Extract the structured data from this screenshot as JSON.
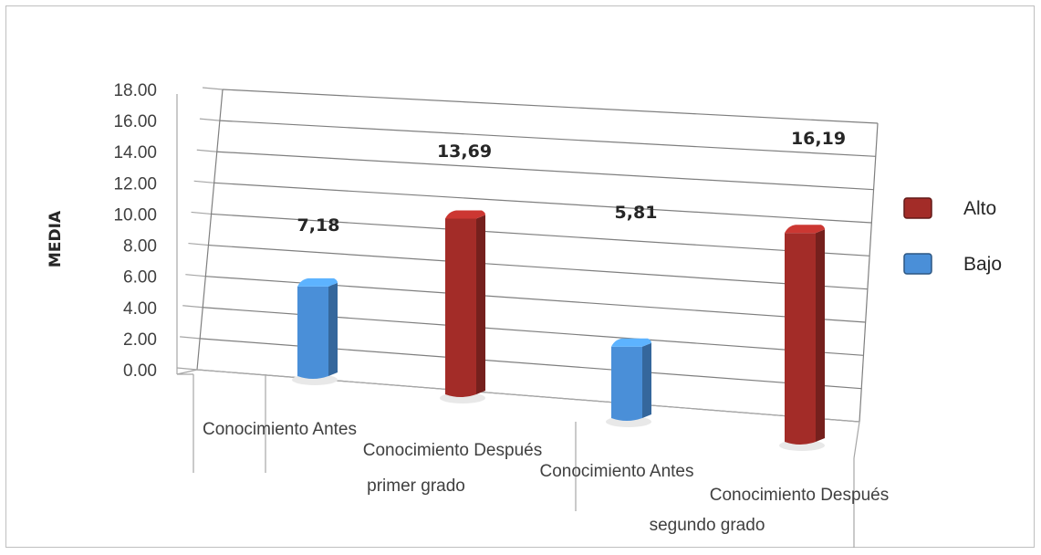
{
  "chart_data": {
    "type": "bar",
    "ylabel": "MEDIA",
    "ylim": [
      0,
      18
    ],
    "yticks": [
      "0.00",
      "2.00",
      "4.00",
      "6.00",
      "8.00",
      "10.00",
      "12.00",
      "14.00",
      "16.00",
      "18.00"
    ],
    "categories": [
      [
        "Conocimiento Antes"
      ],
      [
        "Conocimiento Después",
        "primer grado"
      ],
      [
        "Conocimiento Antes"
      ],
      [
        "Conocimiento Después",
        "segundo grado"
      ]
    ],
    "bars": [
      {
        "value": 7.18,
        "label": "7,18",
        "series": "Bajo"
      },
      {
        "value": 13.69,
        "label": "13,69",
        "series": "Alto"
      },
      {
        "value": 5.81,
        "label": "5,81",
        "series": "Bajo"
      },
      {
        "value": 16.19,
        "label": "16,19",
        "series": "Alto"
      }
    ],
    "legend": [
      {
        "name": "Alto",
        "color": "#a32c28"
      },
      {
        "name": "Bajo",
        "color": "#4a8fd8"
      }
    ],
    "legend_position": "right",
    "grid": true
  }
}
